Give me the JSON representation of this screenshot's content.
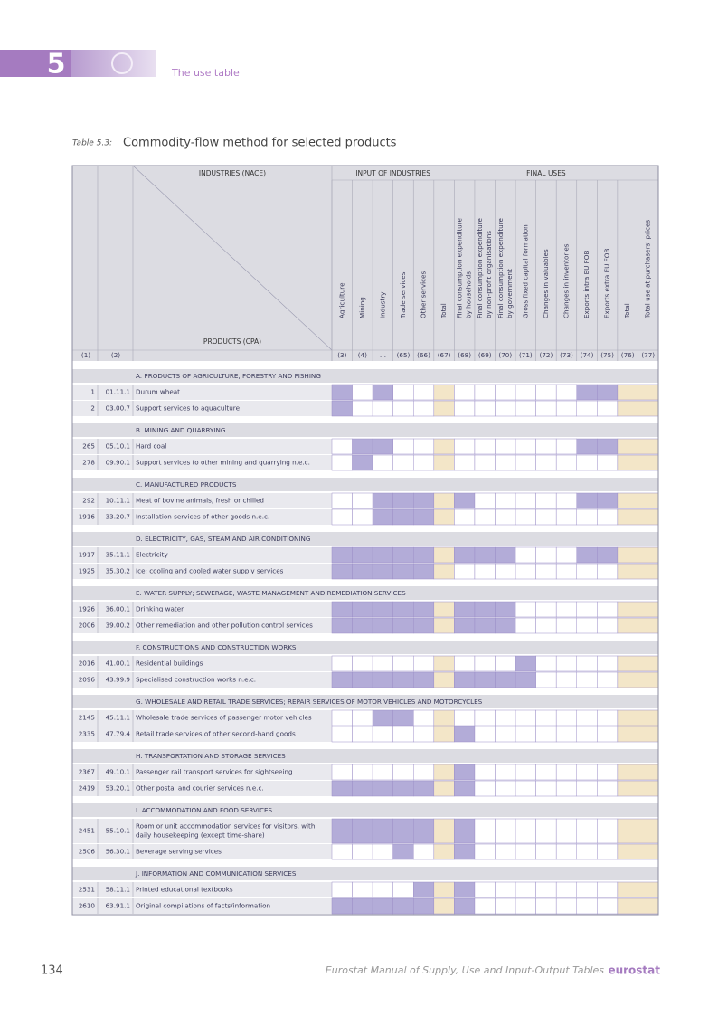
{
  "header": {
    "chapter": "5",
    "section": "The use table"
  },
  "caption": {
    "label": "Table 5.3:",
    "title": "Commodity-flow method for selected products"
  },
  "table": {
    "industries_title": "INDUSTRIES (NACE)",
    "products_title": "PRODUCTS (CPA)",
    "input_title": "INPUT OF INDUSTRIES",
    "final_title": "FINAL USES",
    "left_codes": [
      "(1)",
      "(2)"
    ],
    "columns": [
      {
        "label": [
          "Agriculture"
        ],
        "code": "(3)"
      },
      {
        "label": [
          "Mining"
        ],
        "code": "(4)"
      },
      {
        "label": [
          "Industry"
        ],
        "code": "…"
      },
      {
        "label": [
          "Trade services"
        ],
        "code": "(65)"
      },
      {
        "label": [
          "Other services"
        ],
        "code": "(66)"
      },
      {
        "label": [
          "Total"
        ],
        "code": "(67)"
      },
      {
        "label": [
          "Final consumption expenditure",
          "by households"
        ],
        "code": "(68)"
      },
      {
        "label": [
          "Final consumption expenditure",
          "by non-profit organisations"
        ],
        "code": "(69)"
      },
      {
        "label": [
          "Final consumption expenditure",
          "by government"
        ],
        "code": "(70)"
      },
      {
        "label": [
          "Gross fixed capital formation"
        ],
        "code": "(71)"
      },
      {
        "label": [
          "Changes in valuables"
        ],
        "code": "(72)"
      },
      {
        "label": [
          "Changes in inventories"
        ],
        "code": "(73)"
      },
      {
        "label": [
          "Exports intra EU FOB"
        ],
        "code": "(74)"
      },
      {
        "label": [
          "Exports extra EU FOB"
        ],
        "code": "(75)"
      },
      {
        "label": [
          "Total"
        ],
        "code": "(76)"
      },
      {
        "label": [
          "Total use at purchasers' prices"
        ],
        "code": "(77)"
      }
    ],
    "sections": [
      {
        "title": "A. PRODUCTS OF AGRICULTURE, FORESTRY AND FISHING",
        "rows": [
          {
            "no": "1",
            "code": "01.11.1",
            "label": [
              "Durum wheat"
            ]
          },
          {
            "no": "2",
            "code": "03.00.7",
            "label": [
              "Support services to aquaculture"
            ]
          }
        ]
      },
      {
        "title": "B. MINING AND QUARRYING",
        "rows": [
          {
            "no": "265",
            "code": "05.10.1",
            "label": [
              "Hard coal"
            ]
          },
          {
            "no": "278",
            "code": "09.90.1",
            "label": [
              "Support services to other mining and quarrying n.e.c."
            ]
          }
        ]
      },
      {
        "title": "C. MANUFACTURED PRODUCTS",
        "rows": [
          {
            "no": "292",
            "code": "10.11.1",
            "label": [
              "Meat of bovine animals, fresh or chilled"
            ]
          },
          {
            "no": "1916",
            "code": "33.20.7",
            "label": [
              "Installation services of other goods n.e.c."
            ]
          }
        ]
      },
      {
        "title": "D. ELECTRICITY, GAS, STEAM AND AIR CONDITIONING",
        "rows": [
          {
            "no": "1917",
            "code": "35.11.1",
            "label": [
              "Electricity"
            ]
          },
          {
            "no": "1925",
            "code": "35.30.2",
            "label": [
              "Ice; cooling and cooled water supply services"
            ]
          }
        ]
      },
      {
        "title": "E. WATER SUPPLY; SEWERAGE, WASTE MANAGEMENT AND REMEDIATION SERVICES",
        "rows": [
          {
            "no": "1926",
            "code": "36.00.1",
            "label": [
              "Drinking water"
            ]
          },
          {
            "no": "2006",
            "code": "39.00.2",
            "label": [
              "Other remediation and other pollution control services"
            ]
          }
        ]
      },
      {
        "title": "F. CONSTRUCTIONS AND CONSTRUCTION WORKS",
        "rows": [
          {
            "no": "2016",
            "code": "41.00.1",
            "label": [
              "Residential buildings"
            ]
          },
          {
            "no": "2096",
            "code": "43.99.9",
            "label": [
              "Specialised construction works n.e.c."
            ]
          }
        ]
      },
      {
        "title": "G. WHOLESALE AND RETAIL TRADE SERVICES; REPAIR SERVICES OF MOTOR VEHICLES AND MOTORCYCLES",
        "rows": [
          {
            "no": "2145",
            "code": "45.11.1",
            "label": [
              "Wholesale trade services of passenger motor vehicles"
            ]
          },
          {
            "no": "2335",
            "code": "47.79.4",
            "label": [
              "Retail trade services of other second-hand goods"
            ]
          }
        ]
      },
      {
        "title": "H. TRANSPORTATION AND STORAGE SERVICES",
        "rows": [
          {
            "no": "2367",
            "code": "49.10.1",
            "label": [
              "Passenger rail transport services for sightseeing"
            ]
          },
          {
            "no": "2419",
            "code": "53.20.1",
            "label": [
              "Other postal and courier services n.e.c."
            ]
          }
        ]
      },
      {
        "title": "I. ACCOMMODATION AND FOOD SERVICES",
        "rows": [
          {
            "no": "2451",
            "code": "55.10.1",
            "label": [
              "Room or unit accommodation services for visitors, with",
              "daily housekeeping (except time-share)"
            ]
          },
          {
            "no": "2506",
            "code": "56.30.1",
            "label": [
              "Beverage serving services"
            ]
          }
        ]
      },
      {
        "title": "J. INFORMATION AND COMMUNICATION SERVICES",
        "rows": [
          {
            "no": "2531",
            "code": "58.11.1",
            "label": [
              "Printed educational textbooks"
            ]
          },
          {
            "no": "2610",
            "code": "63.91.1",
            "label": [
              "Original compilations of facts/information"
            ]
          }
        ]
      }
    ]
  },
  "footer": {
    "page": "134",
    "book": "Eurostat Manual of Supply, Use and Input-Output Tables",
    "brand": "eurostat"
  }
}
